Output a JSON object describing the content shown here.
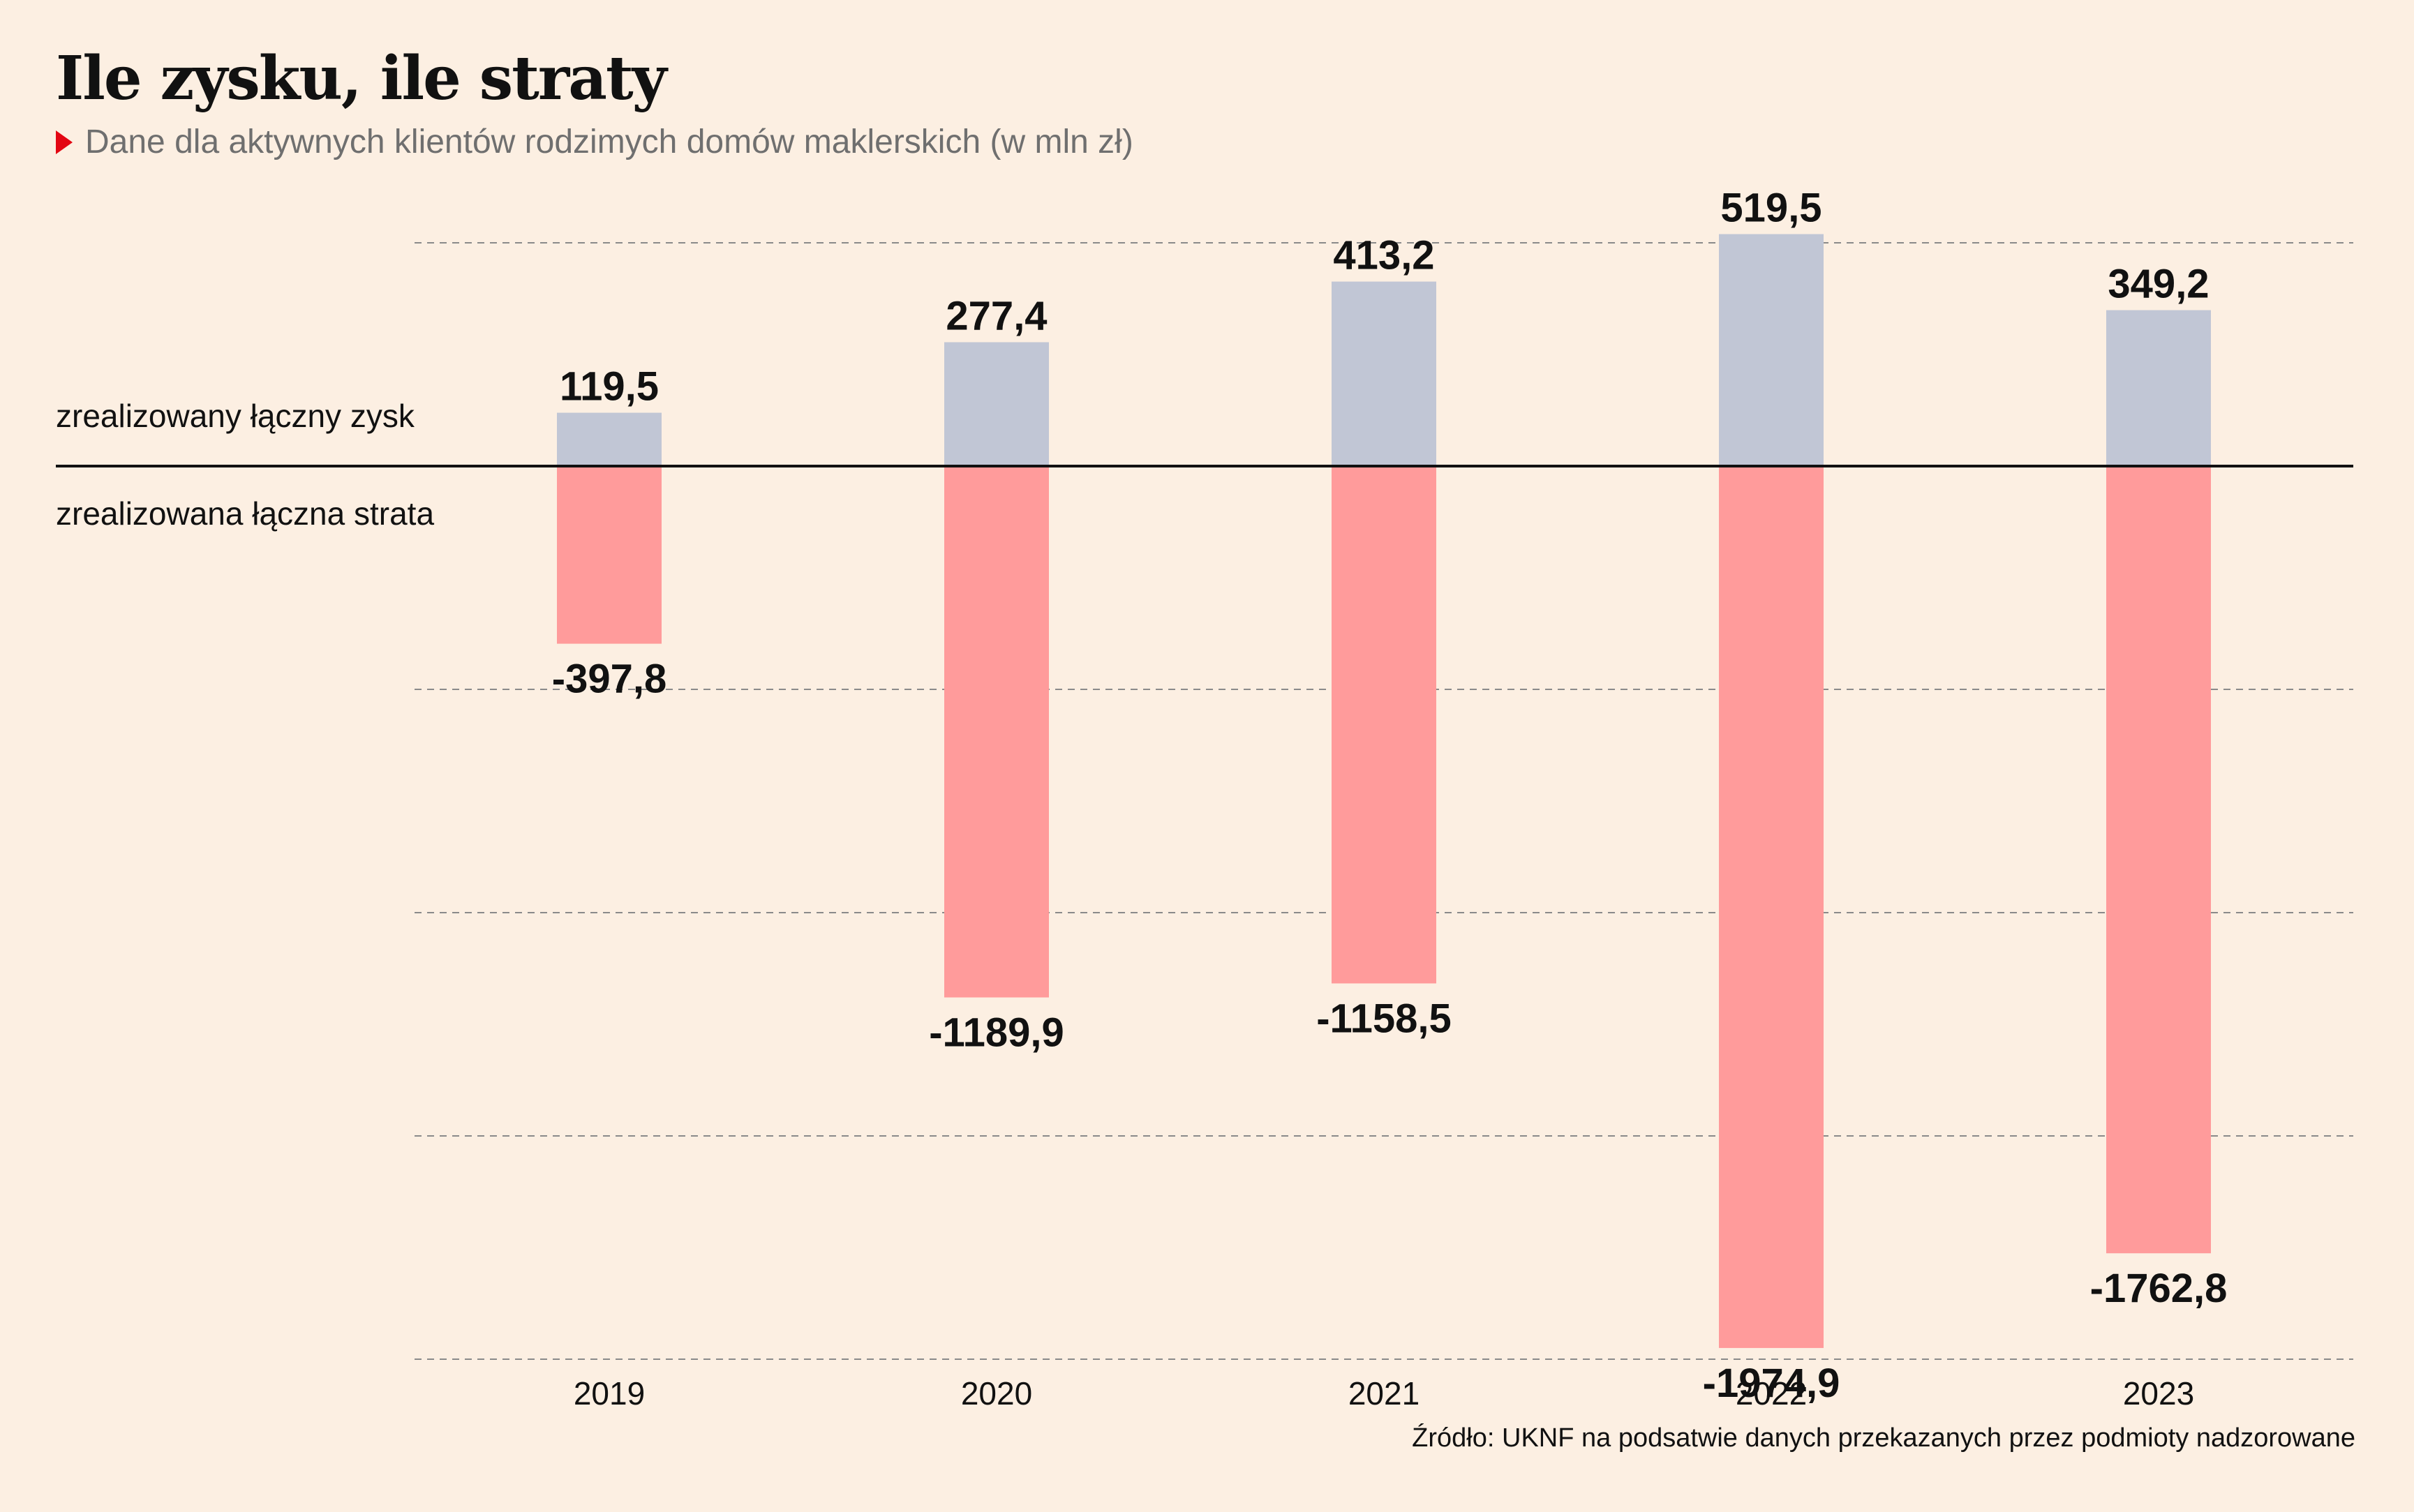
{
  "title": "Ile zysku, ile straty",
  "subtitle": "Dane dla aktywnych klientów rodzimych domów maklerskich (w mln zł)",
  "source": "Źródło: UKNF na podsatwie danych przekazanych przez podmioty nadzorowane",
  "colors": {
    "background": "#fcefe2",
    "profit": "#c1c6d5",
    "loss": "#ff9b9b",
    "marker": "#e30613",
    "gridline": "#8a8a8a",
    "baseline": "#111111"
  },
  "chart_data": {
    "type": "bar",
    "categories": [
      "2019",
      "2020",
      "2021",
      "2022",
      "2023"
    ],
    "series": [
      {
        "name": "zrealizowany łączny zysk",
        "values": [
          119.5,
          277.4,
          413.2,
          519.5,
          349.2
        ],
        "labels": [
          "119,5",
          "277,4",
          "413,2",
          "519,5",
          "349,2"
        ],
        "color": "#c1c6d5"
      },
      {
        "name": "zrealizowana łączna strata",
        "values": [
          -397.8,
          -1189.9,
          -1158.5,
          -1974.9,
          -1762.8
        ],
        "labels": [
          "-397,8",
          "-1189,9",
          "-1158,5",
          "-1974,9",
          "-1762,8"
        ],
        "color": "#ff9b9b"
      }
    ],
    "stacked": true,
    "ylim": [
      -2000,
      500
    ],
    "gridlines": [
      500,
      -500,
      -1000,
      -1500,
      -2000
    ],
    "grid": true,
    "legend": "left, beside zero line"
  }
}
